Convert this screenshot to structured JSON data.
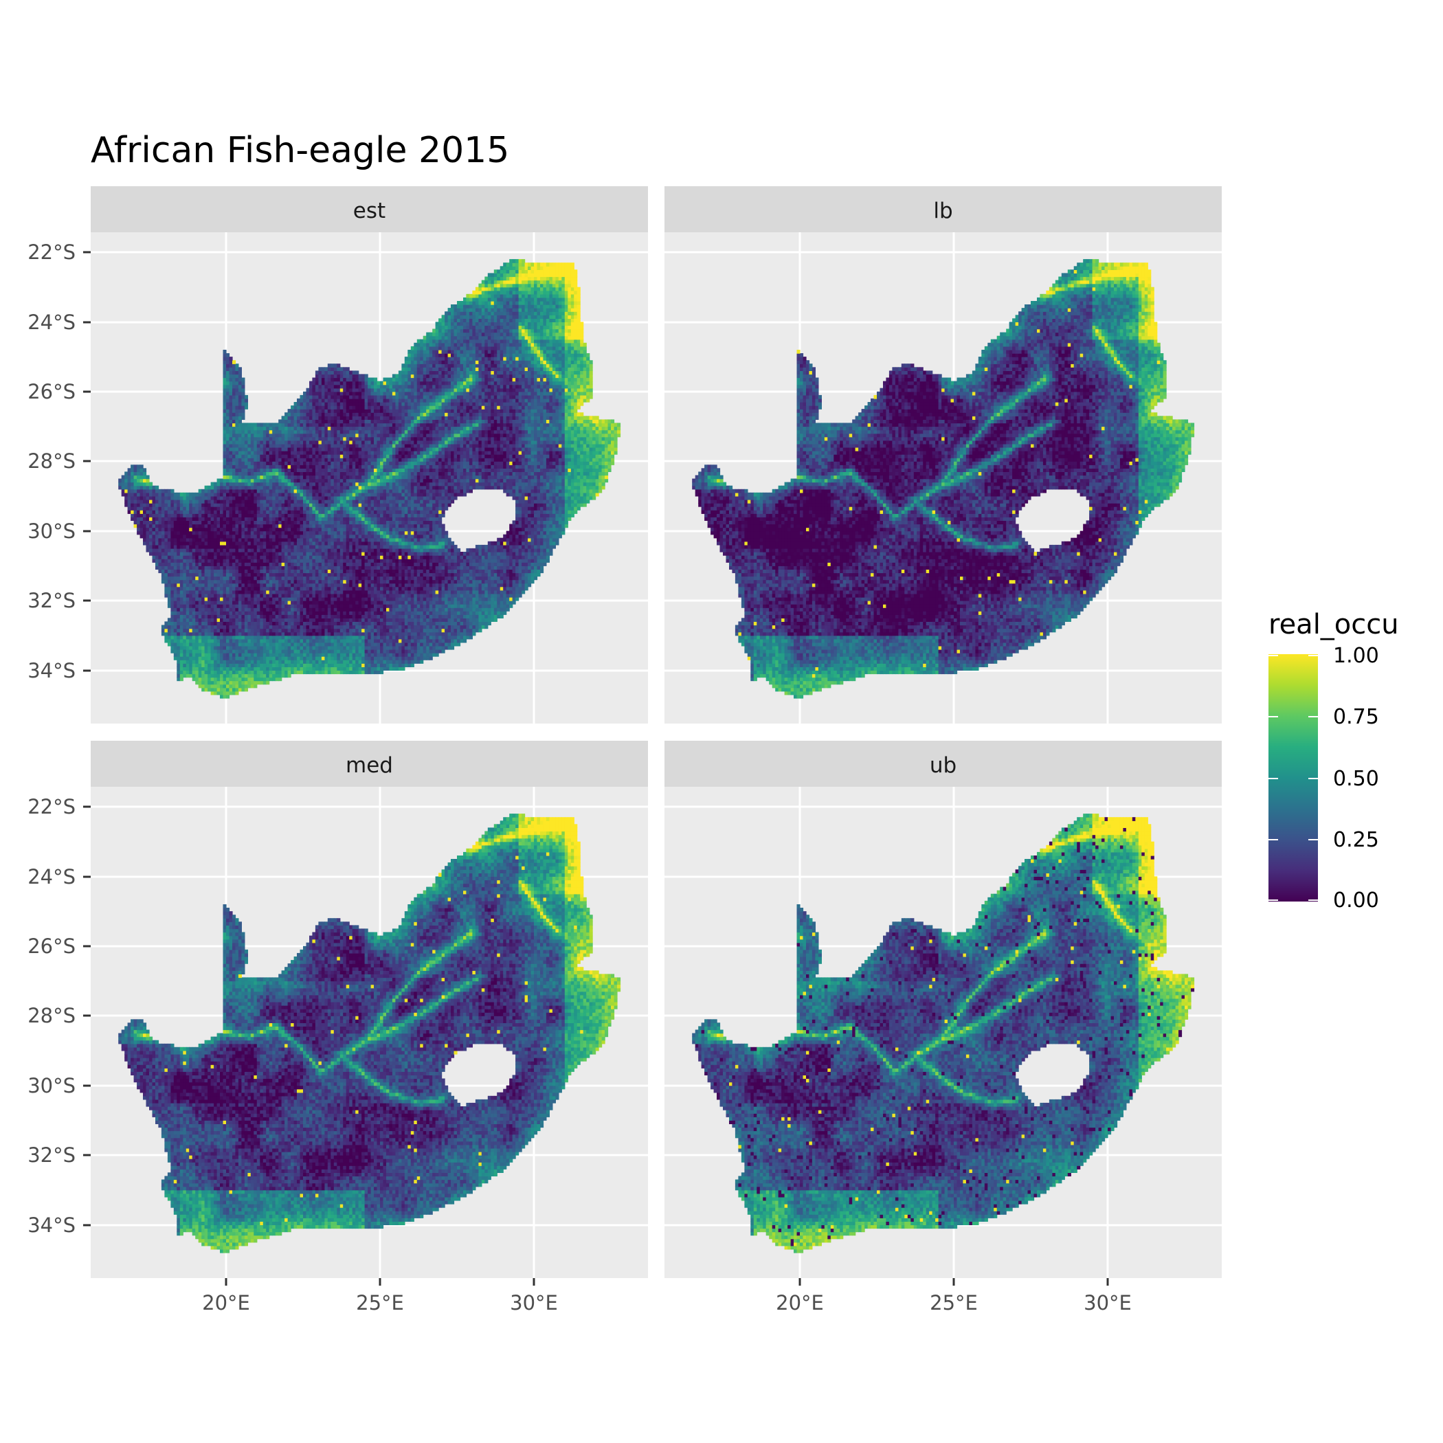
{
  "title": "African Fish-eagle 2015",
  "panels": [
    {
      "label": "est"
    },
    {
      "label": "lb"
    },
    {
      "label": "med"
    },
    {
      "label": "ub"
    }
  ],
  "axes": {
    "x_ticks": [
      "20°E",
      "25°E",
      "30°E"
    ],
    "y_ticks": [
      "22°S",
      "24°S",
      "26°S",
      "28°S",
      "30°S",
      "32°S",
      "34°S"
    ],
    "x_tick_values": [
      20,
      25,
      30
    ],
    "y_tick_values": [
      -22,
      -24,
      -26,
      -28,
      -30,
      -32,
      -34
    ],
    "lon_range": [
      15.6,
      33.7
    ],
    "lat_range": [
      -35.5,
      -20.6
    ]
  },
  "legend": {
    "title": "real_occu",
    "labels": [
      "1.00",
      "0.75",
      "0.50",
      "0.25",
      "0.00"
    ],
    "values": [
      1.0,
      0.75,
      0.5,
      0.25,
      0.0
    ],
    "colormap": "viridis",
    "colors": [
      "#440154",
      "#3b528b",
      "#21918c",
      "#5ec962",
      "#fde725"
    ]
  },
  "colors": {
    "panel_bg": "#ebebeb",
    "strip_bg": "#d9d9d9",
    "grid": "#ffffff",
    "text": "#4d4d4d",
    "title": "#000000"
  }
}
